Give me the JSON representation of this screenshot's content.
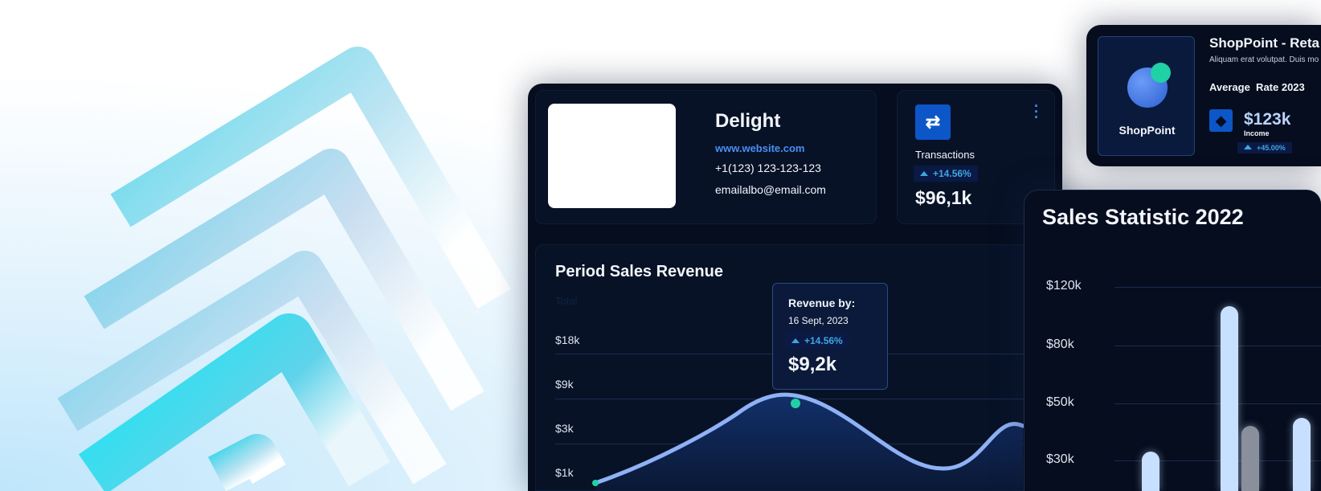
{
  "profile": {
    "name": "Delight",
    "website": "www.website.com",
    "phone": "+1(123) 123-123-123",
    "email": "emailalbo@email.com"
  },
  "transactions": {
    "icon": "arrows-swap-icon",
    "label": "Transactions",
    "change": "+14.56%",
    "value": "$96,1k",
    "menu_icon": "more-vertical-icon"
  },
  "period": {
    "title": "Period Sales Revenue",
    "subtitle": "Total",
    "y_ticks": [
      "$18k",
      "$9k",
      "$3k",
      "$1k"
    ],
    "tooltip": {
      "title": "Revenue by:",
      "date": "16 Sept, 2023",
      "change": "+14.56%",
      "value": "$9,2k"
    },
    "colors": {
      "line": "#8fb1f5",
      "point": "#1fd1a5"
    }
  },
  "shop": {
    "brand": "ShopPoint",
    "title": "ShopPoint - Reta",
    "description": "Aliquam erat volutpat. Duis mo",
    "rate_title": "Average  Rate 2023",
    "icon": "diamond-icon",
    "value": "$123k",
    "value_label": "Income",
    "change": "+45.00%"
  },
  "chart_data": {
    "type": "bar",
    "title": "Sales Statistic 2022",
    "y_ticks": [
      "$120k",
      "$80k",
      "$50k",
      "$30k"
    ],
    "y_tick_values": [
      120,
      80,
      50,
      30
    ],
    "unit": "$k",
    "bars": [
      {
        "value": 33,
        "color": "#c8e0ff"
      },
      {
        "value": 107,
        "color": "#c8e0ff"
      },
      {
        "value": 42,
        "color": "#8a8f9c"
      },
      {
        "value": 45,
        "color": "#c8e0ff"
      }
    ]
  }
}
